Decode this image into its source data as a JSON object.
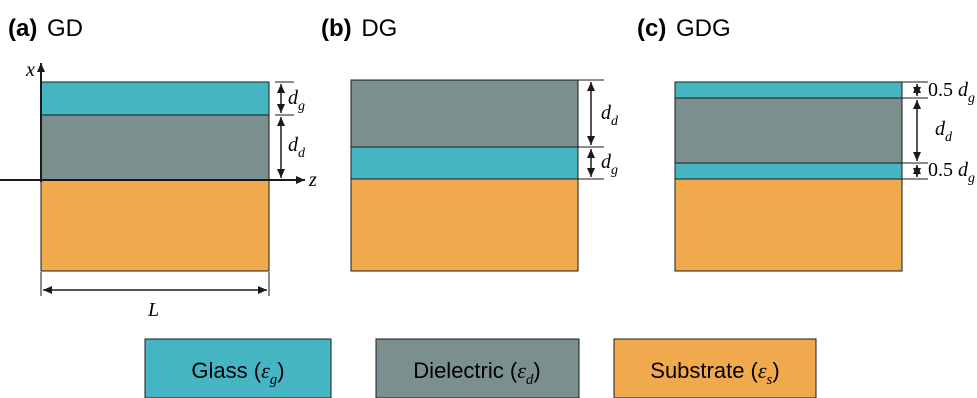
{
  "colors": {
    "glass": "#45b5c4",
    "dielectric": "#7c8f8f",
    "substrate": "#f0a94c",
    "outline": "#1a1a1a"
  },
  "panels": [
    {
      "tag": "(a)",
      "name": "GD"
    },
    {
      "tag": "(b)",
      "name": "DG"
    },
    {
      "tag": "(c)",
      "name": "GDG"
    }
  ],
  "axes": {
    "x": "x",
    "z": "z",
    "length": "L"
  },
  "dims": {
    "dg": {
      "base": "d",
      "sub": "g"
    },
    "dd": {
      "base": "d",
      "sub": "d"
    },
    "half": "0.5"
  },
  "legend": [
    {
      "label": "Glass (",
      "eps": "ε",
      "sub": "g",
      "close": ")"
    },
    {
      "label": "Dielectric (",
      "eps": "ε",
      "sub": "d",
      "close": ")"
    },
    {
      "label": "Substrate (",
      "eps": "ε",
      "sub": "s",
      "close": ")"
    }
  ]
}
